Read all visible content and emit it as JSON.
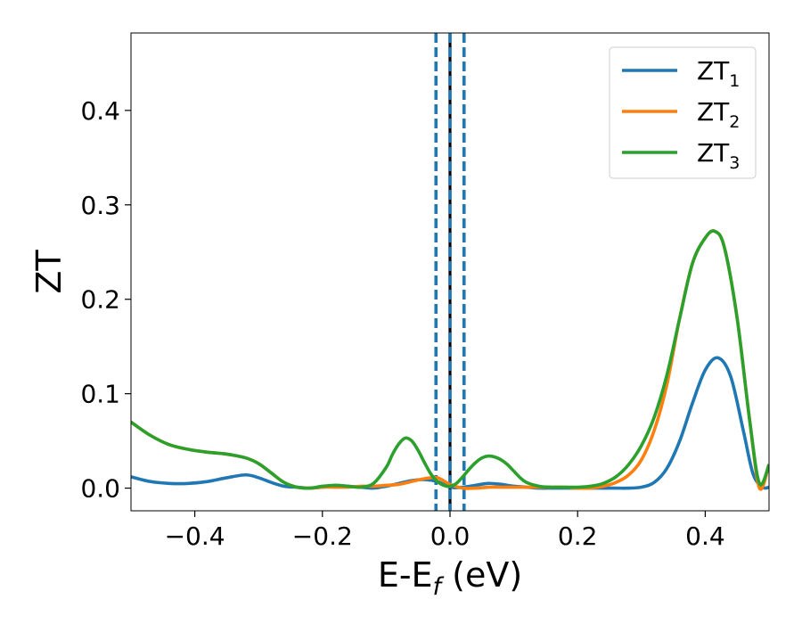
{
  "chart_data": {
    "type": "line",
    "xlabel": "E-E",
    "xlabel_sub": "f",
    "xlabel_unit": " (eV)",
    "ylabel": "ZT",
    "xlim": [
      -0.5,
      0.5
    ],
    "ylim": [
      -0.024,
      0.482
    ],
    "x_ticks": [
      -0.4,
      -0.2,
      0.0,
      0.2,
      0.4
    ],
    "x_tick_labels": [
      "−0.4",
      "−0.2",
      "0.0",
      "0.2",
      "0.4"
    ],
    "y_ticks": [
      0.0,
      0.1,
      0.2,
      0.3,
      0.4
    ],
    "y_tick_labels": [
      "0.0",
      "0.1",
      "0.2",
      "0.3",
      "0.4"
    ],
    "legend_position": "top-right",
    "grid": false,
    "vertical_lines": [
      {
        "x": -0.022,
        "style": "dashed",
        "color": "#1f77b4"
      },
      {
        "x": 0.0,
        "style": "solid",
        "color": "#000000"
      },
      {
        "x": 0.0,
        "style": "dashed",
        "color": "#1f77b4"
      },
      {
        "x": 0.022,
        "style": "dashed",
        "color": "#1f77b4"
      }
    ],
    "series": [
      {
        "name": "ZT",
        "name_sub": "1",
        "color": "#1f77b4",
        "x": [
          -0.5,
          -0.47,
          -0.44,
          -0.41,
          -0.38,
          -0.35,
          -0.32,
          -0.3,
          -0.28,
          -0.26,
          -0.24,
          -0.22,
          -0.2,
          -0.18,
          -0.16,
          -0.14,
          -0.12,
          -0.1,
          -0.08,
          -0.06,
          -0.04,
          -0.02,
          0.0,
          0.02,
          0.04,
          0.06,
          0.08,
          0.1,
          0.12,
          0.14,
          0.16,
          0.18,
          0.2,
          0.22,
          0.24,
          0.26,
          0.28,
          0.3,
          0.32,
          0.34,
          0.36,
          0.38,
          0.4,
          0.42,
          0.44,
          0.46,
          0.475,
          0.49,
          0.5
        ],
        "y": [
          0.012,
          0.007,
          0.005,
          0.005,
          0.007,
          0.011,
          0.014,
          0.011,
          0.006,
          0.002,
          0.001,
          0.0,
          0.001,
          0.003,
          0.002,
          0.001,
          0.0,
          0.002,
          0.005,
          0.008,
          0.009,
          0.007,
          0.001,
          0.001,
          0.003,
          0.005,
          0.004,
          0.002,
          0.001,
          0.0,
          0.0,
          0.0,
          0.0,
          0.0,
          0.0,
          0.0,
          0.0,
          0.001,
          0.006,
          0.021,
          0.05,
          0.09,
          0.125,
          0.138,
          0.118,
          0.06,
          0.015,
          0.001,
          0.001
        ]
      },
      {
        "name": "ZT",
        "name_sub": "2",
        "color": "#ff7f0e",
        "x": [
          -0.5,
          -0.47,
          -0.44,
          -0.41,
          -0.38,
          -0.35,
          -0.32,
          -0.3,
          -0.28,
          -0.26,
          -0.24,
          -0.22,
          -0.2,
          -0.18,
          -0.16,
          -0.14,
          -0.12,
          -0.1,
          -0.08,
          -0.06,
          -0.04,
          -0.02,
          0.0,
          0.02,
          0.04,
          0.06,
          0.08,
          0.1,
          0.12,
          0.14,
          0.16,
          0.18,
          0.2,
          0.22,
          0.24,
          0.26,
          0.28,
          0.3,
          0.32,
          0.34,
          0.36,
          0.38,
          0.4,
          0.415,
          0.43,
          0.45,
          0.47,
          0.485,
          0.5
        ],
        "y": [
          0.07,
          0.056,
          0.046,
          0.041,
          0.038,
          0.036,
          0.032,
          0.026,
          0.016,
          0.006,
          0.001,
          0.0,
          0.001,
          0.001,
          0.001,
          0.002,
          0.002,
          0.003,
          0.004,
          0.007,
          0.01,
          0.011,
          0.004,
          0.0,
          0.0,
          0.001,
          0.001,
          0.001,
          0.001,
          0.001,
          0.001,
          0.001,
          0.0,
          0.0,
          0.002,
          0.006,
          0.014,
          0.03,
          0.061,
          0.11,
          0.18,
          0.238,
          0.265,
          0.272,
          0.255,
          0.18,
          0.07,
          0.0,
          0.025
        ]
      },
      {
        "name": "ZT",
        "name_sub": "3",
        "color": "#2ca02c",
        "x": [
          -0.5,
          -0.47,
          -0.44,
          -0.41,
          -0.38,
          -0.35,
          -0.32,
          -0.3,
          -0.28,
          -0.26,
          -0.24,
          -0.22,
          -0.2,
          -0.18,
          -0.16,
          -0.14,
          -0.12,
          -0.1,
          -0.09,
          -0.08,
          -0.07,
          -0.06,
          -0.05,
          -0.04,
          -0.03,
          -0.02,
          -0.01,
          0.0,
          0.01,
          0.02,
          0.03,
          0.04,
          0.05,
          0.06,
          0.07,
          0.08,
          0.09,
          0.1,
          0.11,
          0.12,
          0.14,
          0.16,
          0.18,
          0.2,
          0.22,
          0.24,
          0.26,
          0.28,
          0.3,
          0.32,
          0.34,
          0.36,
          0.38,
          0.4,
          0.415,
          0.43,
          0.45,
          0.47,
          0.485,
          0.5
        ],
        "y": [
          0.07,
          0.056,
          0.046,
          0.041,
          0.038,
          0.036,
          0.032,
          0.026,
          0.016,
          0.006,
          0.001,
          0.0,
          0.002,
          0.003,
          0.002,
          0.001,
          0.005,
          0.022,
          0.036,
          0.047,
          0.053,
          0.05,
          0.04,
          0.027,
          0.015,
          0.007,
          0.003,
          0.002,
          0.005,
          0.012,
          0.02,
          0.027,
          0.032,
          0.034,
          0.033,
          0.03,
          0.025,
          0.018,
          0.011,
          0.006,
          0.002,
          0.001,
          0.001,
          0.001,
          0.002,
          0.005,
          0.012,
          0.025,
          0.045,
          0.075,
          0.12,
          0.18,
          0.238,
          0.265,
          0.272,
          0.255,
          0.18,
          0.07,
          0.005,
          0.025
        ]
      }
    ]
  }
}
